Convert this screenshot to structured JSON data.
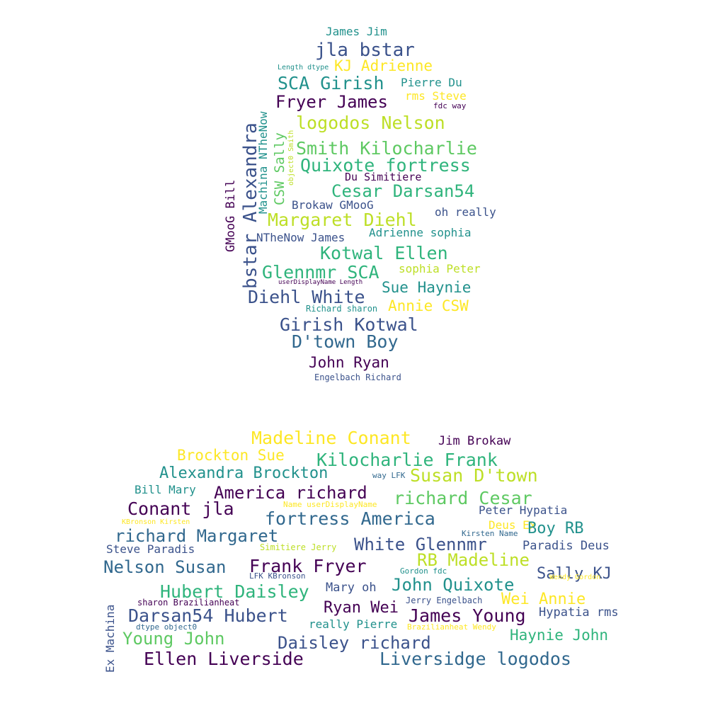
{
  "palette": {
    "background": "#ffffff",
    "colormap": [
      "#440154",
      "#3b528b",
      "#21918c",
      "#5ec962",
      "#fde725"
    ]
  },
  "words": [
    "James Jim",
    "jla bstar",
    "KJ Adrienne",
    "Length dtype",
    "SCA Girish",
    "Pierre Du",
    "rms Steve",
    "Fryer James",
    "fdc way",
    "logodos Nelson",
    "Smith Kilocharlie",
    "Quixote fortress",
    "Du Simitiere",
    "Cesar Darsan54",
    "Brokaw GMooG",
    "oh really",
    "Margaret Diehl",
    "Adrienne sophia",
    "NTheNow James",
    "Kotwal Ellen",
    "Glennmr SCA",
    "sophia Peter",
    "userDisplayName Length",
    "Sue Haynie",
    "Diehl White",
    "Annie CSW",
    "Richard sharon",
    "Girish Kotwal",
    "D'town Boy",
    "John Ryan",
    "Engelbach Richard",
    "bstar Alexandra",
    "Machina NTheNow",
    "CSW Sally",
    "GMooG Bill",
    "object0 Smith",
    "Madeline Conant",
    "Jim Brokaw",
    "Brockton Sue",
    "Kilocharlie Frank",
    "Alexandra Brockton",
    "Susan D'town",
    "way LFK",
    "Bill Mary",
    "America richard",
    "richard Cesar",
    "Name userDisplayName",
    "Conant jla",
    "Peter Hypatia",
    "fortress America",
    "KBronson Kirsten",
    "Deus Ex",
    "Boy RB",
    "richard Margaret",
    "Kirsten Name",
    "White Glennmr",
    "Paradis Deus",
    "Steve Paradis",
    "Simitiere Jerry",
    "RB Madeline",
    "Nelson Susan",
    "Frank Fryer",
    "Gordon fdc",
    "Sally KJ",
    "LFK KBronson",
    "Wendy Gordon",
    "Hubert Daisley",
    "Mary oh",
    "John Quixote",
    "sharon Brazilianheat",
    "Jerry Engelbach",
    "Wei Annie",
    "Ryan Wei",
    "Darsan54 Hubert",
    "James Young",
    "Hypatia rms",
    "dtype object0",
    "really Pierre",
    "Brazilianheat Wendy",
    "Young John",
    "Haynie John",
    "Daisley richard",
    "Ellen Liverside",
    "Liversidge logodos",
    "Ex Machina"
  ]
}
